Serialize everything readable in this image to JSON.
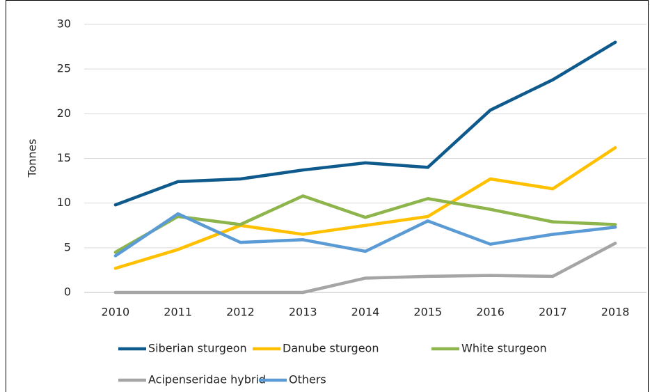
{
  "chart_data": {
    "type": "line",
    "y_label": "Tonnes",
    "categories": [
      "2010",
      "2011",
      "2012",
      "2013",
      "2014",
      "2015",
      "2016",
      "2017",
      "2018"
    ],
    "series": [
      {
        "name": "Siberian sturgeon",
        "color": "#0e5a8c",
        "values": [
          9.8,
          12.4,
          12.7,
          13.7,
          14.5,
          14.0,
          20.4,
          23.8,
          28.0
        ]
      },
      {
        "name": "Danube sturgeon",
        "color": "#ffc000",
        "values": [
          2.7,
          4.8,
          7.5,
          6.5,
          7.5,
          8.5,
          12.7,
          11.6,
          16.2
        ]
      },
      {
        "name": "White sturgeon",
        "color": "#8db54b",
        "values": [
          4.5,
          8.5,
          7.6,
          10.8,
          8.4,
          10.5,
          9.3,
          7.9,
          7.6
        ]
      },
      {
        "name": "Acipenseridae hybrid",
        "color": "#a5a5a5",
        "values": [
          0,
          0,
          0,
          0,
          1.6,
          1.8,
          1.9,
          1.8,
          5.5
        ]
      },
      {
        "name": "Others",
        "color": "#5b9bd5",
        "values": [
          4.1,
          8.8,
          5.6,
          5.9,
          4.6,
          8.0,
          5.4,
          6.5,
          7.3
        ]
      }
    ],
    "ylim": [
      0,
      30
    ],
    "yticks": [
      0,
      5,
      10,
      15,
      20,
      25,
      30
    ],
    "grid": true
  }
}
